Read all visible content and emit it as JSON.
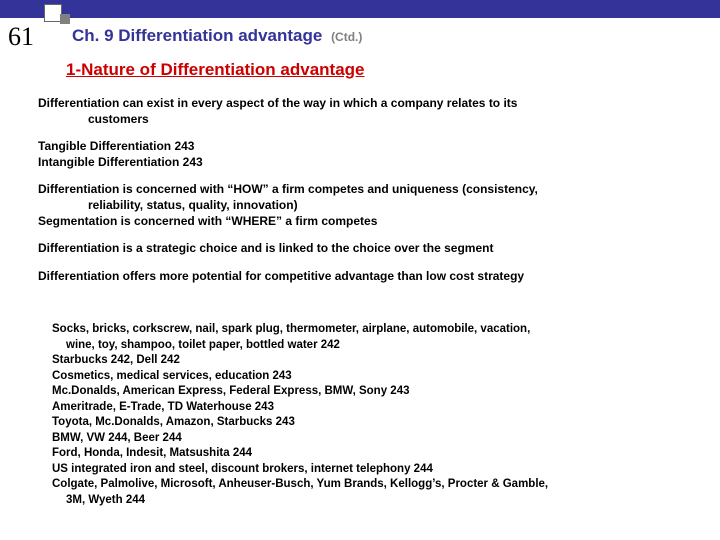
{
  "page_number": "61",
  "chapter_title": "Ch. 9 Differentiation advantage",
  "ctd": "(Ctd.)",
  "section_title": "1-Nature of Differentiation advantage",
  "p1a": "Differentiation can exist in every aspect of the way in which a company relates to its",
  "p1b": "customers",
  "p2a": "Tangible Differentiation 243",
  "p2b": "Intangible Differentiation 243",
  "p3a": "Differentiation is concerned with “HOW” a firm competes and uniqueness (consistency,",
  "p3b": "reliability, status, quality, innovation)",
  "p3c": "Segmentation is concerned with “WHERE” a firm competes",
  "p4": "Differentiation is a strategic choice and is linked to the choice over the segment",
  "p5": "Differentiation offers more potential for competitive advantage than low cost strategy",
  "ex1a": "Socks, bricks, corkscrew, nail, spark plug, thermometer, airplane, automobile, vacation,",
  "ex1b": "wine, toy, shampoo, toilet paper, bottled water 242",
  "ex2": "Starbucks 242, Dell 242",
  "ex3": "Cosmetics, medical services, education 243",
  "ex4": "Mc.Donalds, American Express, Federal Express, BMW, Sony 243",
  "ex5": "Ameritrade, E-Trade, TD Waterhouse 243",
  "ex6": "Toyota, Mc.Donalds, Amazon, Starbucks 243",
  "ex7": "BMW, VW 244, Beer 244",
  "ex8": "Ford, Honda, Indesit, Matsushita 244",
  "ex9": "US integrated iron and steel, discount brokers, internet telephony 244",
  "ex10a": "Colgate, Palmolive, Microsoft, Anheuser-Busch, Yum Brands, Kellogg’s, Procter & Gamble,",
  "ex10b": "3M, Wyeth 244"
}
